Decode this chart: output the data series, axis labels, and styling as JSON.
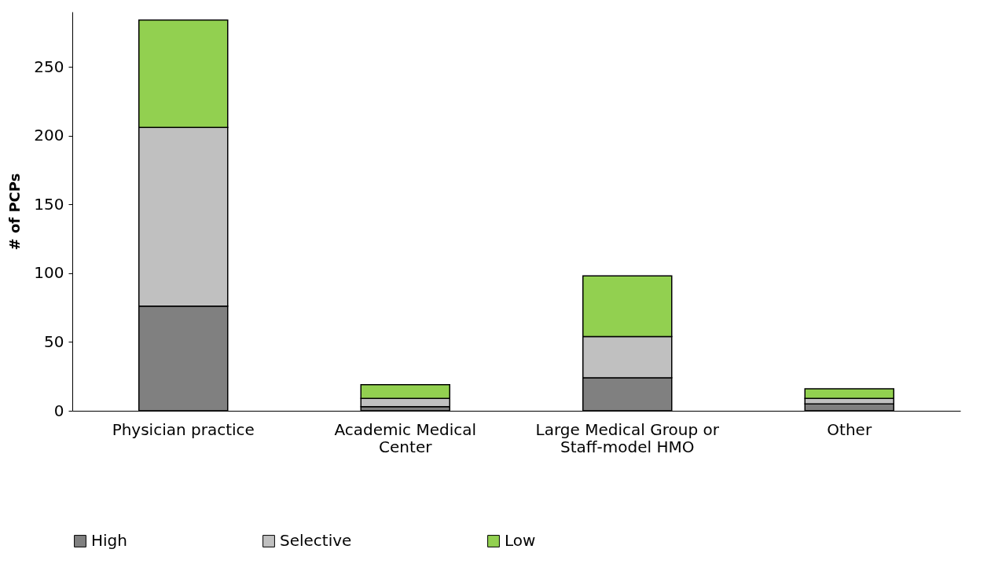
{
  "chart_data": {
    "type": "bar",
    "stacked": true,
    "ylabel": "# of PCPs",
    "categories": [
      "Physician practice",
      "Academic Medical Center",
      "Large Medical Group or Staff-model HMO",
      "Other"
    ],
    "series": [
      {
        "name": "High",
        "color": "#808080",
        "values": [
          76,
          3,
          24,
          5
        ]
      },
      {
        "name": "Selective",
        "color": "#c0c0c0",
        "values": [
          130,
          6,
          30,
          4
        ]
      },
      {
        "name": "Low",
        "color": "#92d050",
        "values": [
          78,
          10,
          44,
          7
        ]
      }
    ],
    "ylim": [
      0,
      290
    ],
    "yticks": [
      0,
      50,
      100,
      150,
      200,
      250
    ],
    "grid": false,
    "legend": "bottom"
  }
}
